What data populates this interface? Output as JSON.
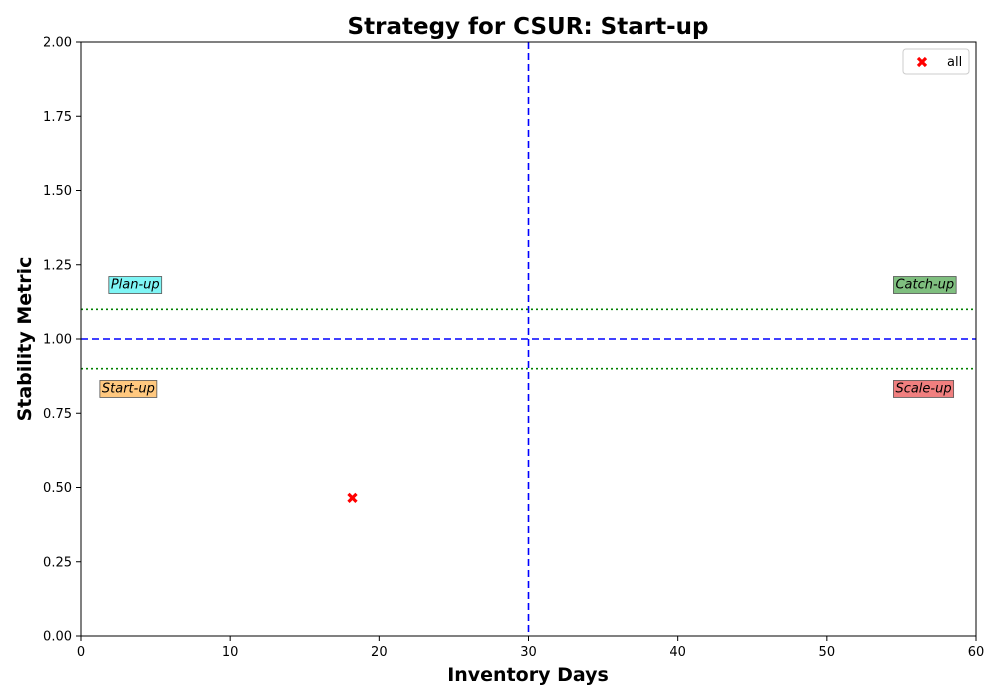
{
  "chart_data": {
    "type": "scatter",
    "title": "Strategy for CSUR: Start-up",
    "xlabel": "Inventory Days",
    "ylabel": "Stability Metric",
    "xlim": [
      0,
      60
    ],
    "ylim": [
      0,
      2.0
    ],
    "xticks": [
      0,
      10,
      20,
      30,
      40,
      50,
      60
    ],
    "xtick_labels": [
      "0",
      "10",
      "20",
      "30",
      "40",
      "50",
      "60"
    ],
    "yticks": [
      0,
      0.25,
      0.5,
      0.75,
      1.0,
      1.25,
      1.5,
      1.75,
      2.0
    ],
    "ytick_labels": [
      "0.00",
      "0.25",
      "0.50",
      "0.75",
      "1.00",
      "1.25",
      "1.50",
      "1.75",
      "2.00"
    ],
    "grid": false,
    "legend_position": "top-right",
    "series": [
      {
        "name": "all",
        "marker": "x",
        "color": "#ff0000",
        "points": [
          {
            "x": 18.2,
            "y": 0.465
          }
        ]
      }
    ],
    "reference_lines": [
      {
        "orientation": "vertical",
        "value": 30,
        "style": "dashed",
        "color": "#0000ff"
      },
      {
        "orientation": "horizontal",
        "value": 1.0,
        "style": "dashed",
        "color": "#0000ff"
      },
      {
        "orientation": "horizontal",
        "value": 1.1,
        "style": "dotted",
        "color": "#008000"
      },
      {
        "orientation": "horizontal",
        "value": 0.9,
        "style": "dotted",
        "color": "#008000"
      }
    ],
    "quadrant_labels": [
      {
        "text": "Plan-up",
        "x": 2.0,
        "y": 1.17,
        "color": "#7ff5f5"
      },
      {
        "text": "Catch-up",
        "x": 54.6,
        "y": 1.17,
        "color": "#7fbf7f"
      },
      {
        "text": "Start-up",
        "x": 1.4,
        "y": 0.82,
        "color": "#ffc87f"
      },
      {
        "text": "Scale-up",
        "x": 54.6,
        "y": 0.82,
        "color": "#f07f7f"
      }
    ]
  }
}
